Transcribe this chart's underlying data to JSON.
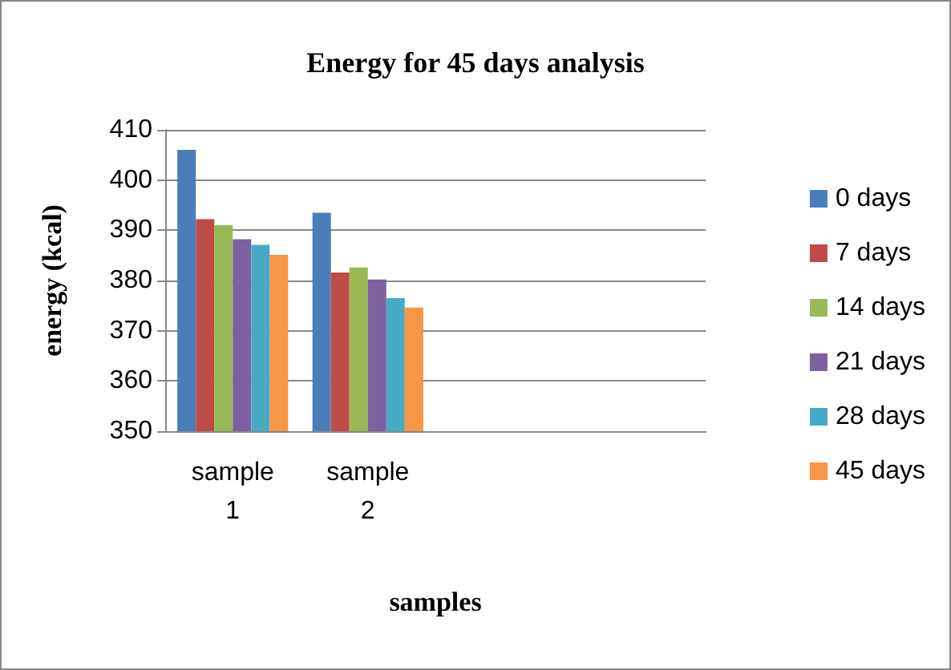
{
  "chart_data": {
    "type": "bar",
    "title": "Energy for 45 days analysis",
    "xlabel": "samples",
    "ylabel": "energy (kcal)",
    "categories": [
      "sample 1",
      "sample 2",
      null,
      null
    ],
    "series": [
      {
        "name": "0 days",
        "color": "#4a7ebb",
        "values": [
          406.0,
          393.5,
          null,
          null
        ]
      },
      {
        "name": "7 days",
        "color": "#be4b48",
        "values": [
          392.2,
          381.6,
          null,
          null
        ]
      },
      {
        "name": "14 days",
        "color": "#98b954",
        "values": [
          391.0,
          382.6,
          null,
          null
        ]
      },
      {
        "name": "21 days",
        "color": "#7d60a0",
        "values": [
          388.2,
          380.2,
          null,
          null
        ]
      },
      {
        "name": "28 days",
        "color": "#46aac5",
        "values": [
          387.1,
          376.5,
          null,
          null
        ]
      },
      {
        "name": "45 days",
        "color": "#f79646",
        "values": [
          385.1,
          374.6,
          null,
          null
        ]
      }
    ],
    "ylim": [
      350,
      410
    ],
    "yticks": [
      350,
      360,
      370,
      380,
      390,
      400,
      410
    ],
    "grid": "y",
    "legend": "right"
  }
}
